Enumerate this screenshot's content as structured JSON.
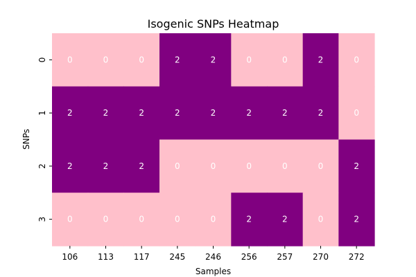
{
  "chart_data": {
    "type": "heatmap",
    "title": "Isogenic SNPs Heatmap",
    "xlabel": "Samples",
    "ylabel": "SNPs",
    "x_categories": [
      "106",
      "113",
      "117",
      "245",
      "246",
      "256",
      "257",
      "270",
      "272"
    ],
    "y_categories": [
      "0",
      "1",
      "2",
      "3"
    ],
    "values": [
      [
        0,
        0,
        0,
        2,
        2,
        0,
        0,
        2,
        0
      ],
      [
        2,
        2,
        2,
        2,
        2,
        2,
        2,
        2,
        0
      ],
      [
        2,
        2,
        2,
        0,
        0,
        0,
        0,
        0,
        2
      ],
      [
        0,
        0,
        0,
        0,
        0,
        2,
        2,
        0,
        2
      ]
    ],
    "annotations": true,
    "color_map": {
      "0": "#ffc0cb",
      "2": "#800080"
    },
    "annotation_color": "#ffffff",
    "colorbar": false
  }
}
